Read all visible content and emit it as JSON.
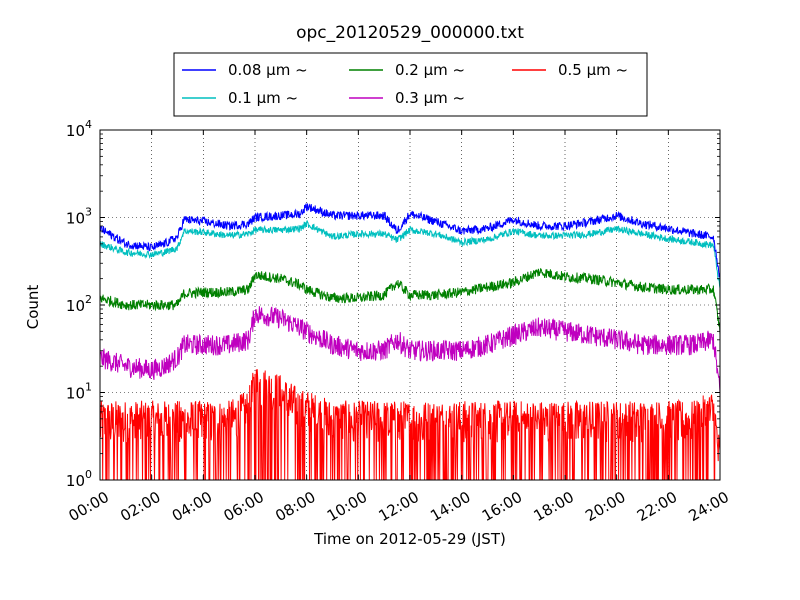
{
  "chart_data": {
    "type": "line",
    "title": "opc_20120529_000000.txt",
    "xlabel": "Time on 2012-05-29 (JST)",
    "ylabel": "Count",
    "y_scale": "log",
    "ylim": [
      1,
      10000
    ],
    "xlim": [
      "00:00",
      "24:00"
    ],
    "grid": true,
    "legend_position": "top",
    "x_ticks": [
      "00:00",
      "02:00",
      "04:00",
      "06:00",
      "08:00",
      "10:00",
      "12:00",
      "14:00",
      "16:00",
      "18:00",
      "20:00",
      "22:00",
      "24:00"
    ],
    "y_ticks": [
      {
        "base": "10",
        "exp": "0"
      },
      {
        "base": "10",
        "exp": "1"
      },
      {
        "base": "10",
        "exp": "2"
      },
      {
        "base": "10",
        "exp": "3"
      },
      {
        "base": "10",
        "exp": "4"
      }
    ],
    "x": [
      "00:00",
      "01:00",
      "02:00",
      "02:30",
      "03:00",
      "03:15",
      "04:00",
      "05:00",
      "05:45",
      "06:00",
      "07:00",
      "07:45",
      "08:00",
      "09:00",
      "10:00",
      "11:00",
      "11:30",
      "12:00",
      "13:00",
      "14:00",
      "15:00",
      "16:00",
      "17:00",
      "18:00",
      "19:00",
      "20:00",
      "21:00",
      "22:00",
      "23:00",
      "23:45",
      "24:00"
    ],
    "series": [
      {
        "name": "0.08 μm ~",
        "color": "#0000ff",
        "values": [
          750,
          500,
          450,
          500,
          600,
          950,
          900,
          800,
          850,
          1000,
          1050,
          1100,
          1350,
          1050,
          1050,
          1050,
          700,
          1100,
          900,
          700,
          750,
          950,
          800,
          800,
          900,
          1050,
          850,
          750,
          650,
          600,
          200
        ]
      },
      {
        "name": "0.1 μm ~",
        "color": "#00bfbf",
        "values": [
          500,
          400,
          380,
          400,
          450,
          700,
          680,
          620,
          650,
          720,
          720,
          750,
          850,
          600,
          650,
          650,
          550,
          720,
          650,
          520,
          560,
          700,
          620,
          620,
          650,
          740,
          650,
          570,
          520,
          480,
          150
        ]
      },
      {
        "name": "0.2 μm ~",
        "color": "#008000",
        "values": [
          120,
          100,
          100,
          100,
          100,
          135,
          140,
          140,
          150,
          220,
          200,
          170,
          150,
          120,
          120,
          130,
          180,
          130,
          130,
          140,
          160,
          180,
          240,
          210,
          200,
          180,
          160,
          150,
          150,
          150,
          50
        ]
      },
      {
        "name": "0.3 μm ~",
        "color": "#bf00bf",
        "values": [
          25,
          20,
          18,
          20,
          25,
          35,
          35,
          35,
          40,
          80,
          70,
          55,
          50,
          35,
          30,
          30,
          40,
          30,
          30,
          30,
          35,
          45,
          55,
          50,
          45,
          40,
          35,
          35,
          35,
          40,
          10
        ]
      },
      {
        "name": "0.5 μm ~",
        "color": "#ff0000",
        "values": [
          3,
          3,
          3,
          3,
          3,
          3,
          3,
          3,
          4,
          8,
          6,
          4,
          4,
          3,
          3,
          3,
          3,
          3,
          3,
          3,
          3,
          3,
          3,
          3,
          3,
          3,
          3,
          3,
          3,
          4,
          1
        ]
      }
    ]
  }
}
